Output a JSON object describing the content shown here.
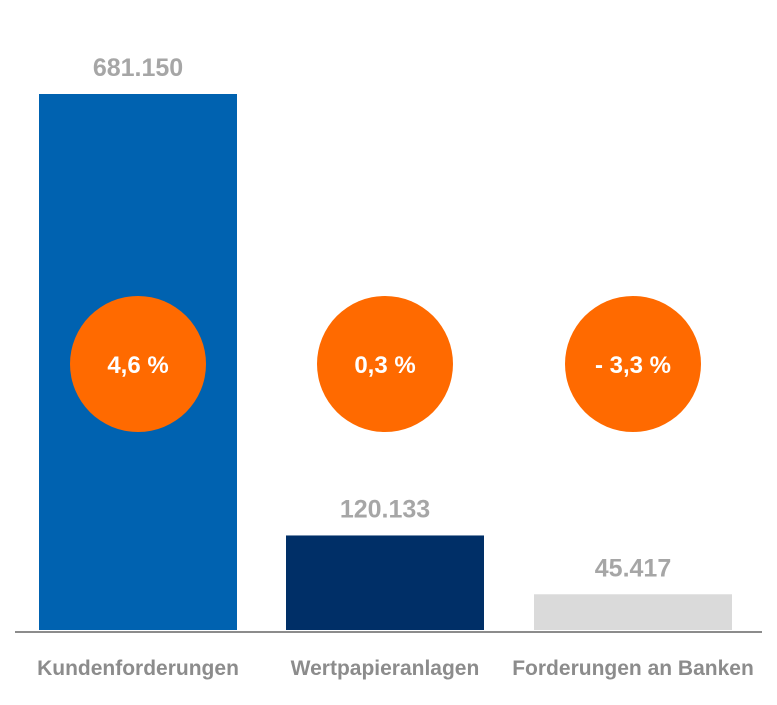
{
  "chart_data": {
    "type": "bar",
    "title": "",
    "xlabel": "",
    "ylabel": "",
    "categories": [
      "Kundenforderungen",
      "Wertpapieranlagen",
      "Forderungen an Banken"
    ],
    "values": [
      681150,
      120133,
      45417
    ],
    "value_labels": [
      "681.150",
      "120.133",
      "45.417"
    ],
    "change_labels": [
      "4,6 %",
      "0,3 %",
      "- 3,3 %"
    ],
    "bar_colors": [
      "#0062b0",
      "#002f67",
      "#dadada"
    ],
    "badge_color": "#ff6a00",
    "axis_color": "#8c8c8c",
    "ylim": [
      0,
      681150
    ],
    "grid": false,
    "legend": "none"
  }
}
